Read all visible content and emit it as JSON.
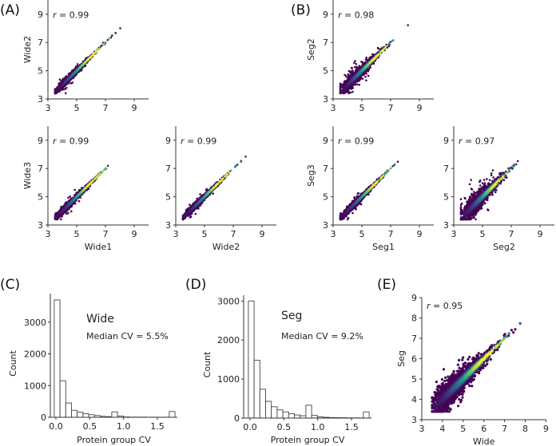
{
  "panel_labels": {
    "A": "(A)",
    "B": "(B)",
    "C": "(C)",
    "D": "(D)",
    "E": "(E)"
  },
  "chart_data": [
    {
      "id": "A1",
      "type": "scatter",
      "xlabel": "",
      "ylabel": "Wide2",
      "xlim": [
        3,
        10
      ],
      "ylim": [
        3,
        10
      ],
      "xticks": [
        3,
        5,
        7,
        9
      ],
      "yticks": [
        3,
        5,
        7,
        9
      ],
      "r_var": "r",
      "r_text": " = 0.99",
      "r": 0.99,
      "colormap": "viridis density"
    },
    {
      "id": "A2",
      "type": "scatter",
      "xlabel": "Wide1",
      "ylabel": "Wide3",
      "xlim": [
        3,
        10
      ],
      "ylim": [
        3,
        10
      ],
      "xticks": [
        3,
        5,
        7,
        9
      ],
      "yticks": [
        3,
        5,
        7,
        9
      ],
      "r_var": "r",
      "r_text": " = 0.99",
      "r": 0.99,
      "colormap": "viridis density"
    },
    {
      "id": "A3",
      "type": "scatter",
      "xlabel": "Wide2",
      "ylabel": "",
      "xlim": [
        3,
        10
      ],
      "ylim": [
        3,
        10
      ],
      "xticks": [
        3,
        5,
        7,
        9
      ],
      "yticks": [
        3,
        5,
        7,
        9
      ],
      "r_var": "r",
      "r_text": " = 0.99",
      "r": 0.99,
      "colormap": "viridis density"
    },
    {
      "id": "B1",
      "type": "scatter",
      "xlabel": "",
      "ylabel": "Seg2",
      "xlim": [
        3,
        10
      ],
      "ylim": [
        3,
        10
      ],
      "xticks": [
        3,
        5,
        7,
        9
      ],
      "yticks": [
        3,
        5,
        7,
        9
      ],
      "r_var": "r",
      "r_text": " = 0.98",
      "r": 0.98,
      "colormap": "viridis density"
    },
    {
      "id": "B2",
      "type": "scatter",
      "xlabel": "Seg1",
      "ylabel": "Seg3",
      "xlim": [
        3,
        10
      ],
      "ylim": [
        3,
        10
      ],
      "xticks": [
        3,
        5,
        7,
        9
      ],
      "yticks": [
        3,
        5,
        7,
        9
      ],
      "r_var": "r",
      "r_text": " = 0.99",
      "r": 0.99,
      "colormap": "viridis density"
    },
    {
      "id": "B3",
      "type": "scatter",
      "xlabel": "Seg2",
      "ylabel": "",
      "xlim": [
        3,
        10
      ],
      "ylim": [
        3,
        10
      ],
      "xticks": [
        3,
        5,
        7,
        9
      ],
      "yticks": [
        3,
        5,
        7,
        9
      ],
      "r_var": "r",
      "r_text": " = 0.97",
      "r": 0.97,
      "colormap": "viridis density"
    },
    {
      "id": "C",
      "type": "bar",
      "title": "Wide",
      "annotation": "Median CV = 5.5%",
      "xlabel": "Protein group CV",
      "ylabel": "Count",
      "bin_start": -0.025,
      "bin_width": 0.085,
      "values": [
        3700,
        1150,
        450,
        220,
        160,
        110,
        80,
        55,
        30,
        20,
        170,
        40,
        10,
        5,
        5,
        5,
        3,
        3,
        2,
        2,
        180
      ],
      "xticks": [
        0.0,
        0.5,
        1.0,
        1.5
      ],
      "xtick_labels": [
        "0.0",
        "0.5",
        "1.0",
        "1.5"
      ],
      "yticks": [
        0,
        1000,
        2000,
        3000
      ],
      "ylim": [
        0,
        3900
      ]
    },
    {
      "id": "D",
      "type": "bar",
      "title": "Seg",
      "annotation": "Median CV = 9.2%",
      "xlabel": "Protein group CV",
      "ylabel": "Count",
      "bin_start": -0.025,
      "bin_width": 0.085,
      "values": [
        3000,
        1480,
        740,
        430,
        290,
        210,
        160,
        110,
        80,
        60,
        330,
        70,
        30,
        20,
        15,
        10,
        8,
        6,
        5,
        5,
        160
      ],
      "xticks": [
        0.0,
        0.5,
        1.0,
        1.5
      ],
      "xtick_labels": [
        "0.0",
        "0.5",
        "1.0",
        "1.5"
      ],
      "yticks": [
        0,
        1000,
        2000,
        3000
      ],
      "ylim": [
        0,
        3150
      ]
    },
    {
      "id": "E",
      "type": "scatter",
      "xlabel": "Wide",
      "ylabel": "Seg",
      "xlim": [
        3,
        9
      ],
      "ylim": [
        3,
        9
      ],
      "xticks": [
        3,
        4,
        5,
        6,
        7,
        8,
        9
      ],
      "yticks": [
        3,
        4,
        5,
        6,
        7,
        8,
        9
      ],
      "r_var": "r",
      "r_text": " = 0.95",
      "r": 0.95,
      "colormap": "viridis density"
    }
  ],
  "colors": {
    "viridis": [
      "#440154",
      "#3b528b",
      "#21918c",
      "#5ec962",
      "#fde725"
    ],
    "axis": "#333333",
    "bar_edge": "#444444"
  }
}
